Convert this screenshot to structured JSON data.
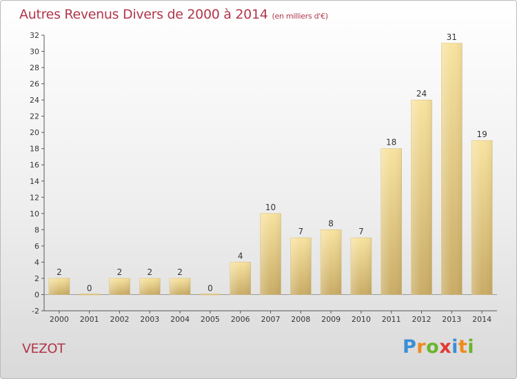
{
  "header": {
    "title": "Autres Revenus Divers de 2000 à 2014",
    "subtitle": "(en milliers d'€)"
  },
  "commune": "VEZOT",
  "logo": {
    "letters": [
      {
        "char": "P",
        "color": "#3a8fd6"
      },
      {
        "char": "r",
        "color": "#f08a1c"
      },
      {
        "char": "o",
        "color": "#6bb42c"
      },
      {
        "char": "x",
        "color": "#e23b34"
      },
      {
        "char": "i",
        "color": "#3a8fd6"
      },
      {
        "char": "t",
        "color": "#f08a1c"
      },
      {
        "char": "i",
        "color": "#6bb42c"
      }
    ]
  },
  "chart_data": {
    "type": "bar",
    "categories": [
      "2000",
      "2001",
      "2002",
      "2003",
      "2004",
      "2005",
      "2006",
      "2007",
      "2008",
      "2009",
      "2010",
      "2011",
      "2012",
      "2013",
      "2014"
    ],
    "values": [
      2,
      0,
      2,
      2,
      2,
      0,
      4,
      10,
      7,
      8,
      7,
      18,
      24,
      31,
      19
    ],
    "ylim": [
      -2,
      32
    ],
    "yticks": [
      -2,
      0,
      2,
      4,
      6,
      8,
      10,
      12,
      14,
      16,
      18,
      20,
      22,
      24,
      26,
      28,
      30,
      32
    ],
    "grid": false,
    "bar_color": "#e8d08a"
  }
}
